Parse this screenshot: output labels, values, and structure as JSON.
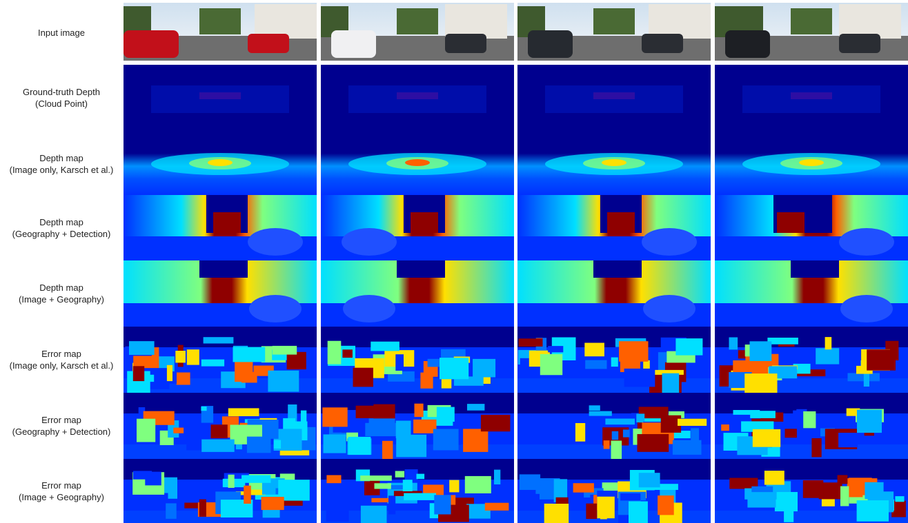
{
  "rows": [
    {
      "lines": [
        "Input image"
      ],
      "kind": "input"
    },
    {
      "lines": [
        "Ground-truth Depth",
        "(Cloud Point)"
      ],
      "kind": "gt"
    },
    {
      "lines": [
        "Depth map",
        "(Image only, Karsch et al.)"
      ],
      "kind": "depth_karsch"
    },
    {
      "lines": [
        "Depth map",
        "(Geography + Detection)"
      ],
      "kind": "depth_geo_det"
    },
    {
      "lines": [
        "Depth map",
        "(Image + Geography)"
      ],
      "kind": "depth_img_geo"
    },
    {
      "lines": [
        "Error map",
        "(Image only, Karsch et al.)"
      ],
      "kind": "err_karsch"
    },
    {
      "lines": [
        "Error map",
        "(Geography + Detection)"
      ],
      "kind": "err_geo_det"
    },
    {
      "lines": [
        "Error map",
        "(Image + Geography)"
      ],
      "kind": "err_img_geo"
    }
  ],
  "columns": 4,
  "colors": {
    "jet_dark_blue": "#00008f",
    "jet_blue": "#0030ff",
    "jet_cyan": "#00e0ff",
    "jet_green": "#7fff7f",
    "jet_yellow": "#ffe000",
    "jet_orange": "#ff6000",
    "jet_dark_red": "#8f0000",
    "sky": "#e6eef5",
    "road": "#6e6e6e"
  }
}
